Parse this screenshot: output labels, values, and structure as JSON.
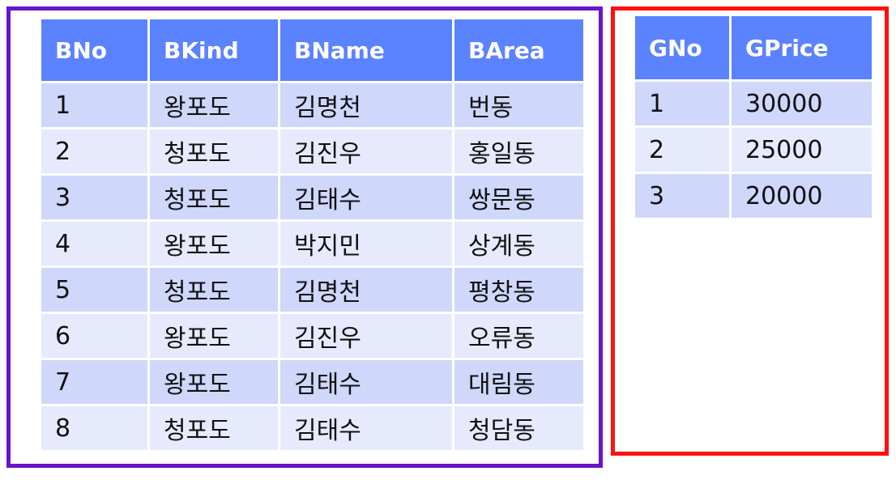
{
  "left_table": {
    "headers": [
      "BNo",
      "BKind",
      "BName",
      "BArea"
    ],
    "rows": [
      [
        "1",
        "왕포도",
        "김명천",
        "번동"
      ],
      [
        "2",
        "청포도",
        "김진우",
        "홍일동"
      ],
      [
        "3",
        "청포도",
        "김태수",
        "쌍문동"
      ],
      [
        "4",
        "왕포도",
        "박지민",
        "상계동"
      ],
      [
        "5",
        "청포도",
        "김명천",
        "평창동"
      ],
      [
        "6",
        "왕포도",
        "김진우",
        "오류동"
      ],
      [
        "7",
        "왕포도",
        "김태수",
        "대림동"
      ],
      [
        "8",
        "청포도",
        "김태수",
        "청담동"
      ]
    ]
  },
  "right_table": {
    "headers": [
      "GNo",
      "GPrice"
    ],
    "rows": [
      [
        "1",
        "30000"
      ],
      [
        "2",
        "25000"
      ],
      [
        "3",
        "20000"
      ]
    ]
  },
  "colors": {
    "left_border": "#6a14c8",
    "right_border": "#ff1010",
    "header_bg": "#5b82ff",
    "row_dark": "#cfd7fb",
    "row_light": "#e7eafd"
  }
}
